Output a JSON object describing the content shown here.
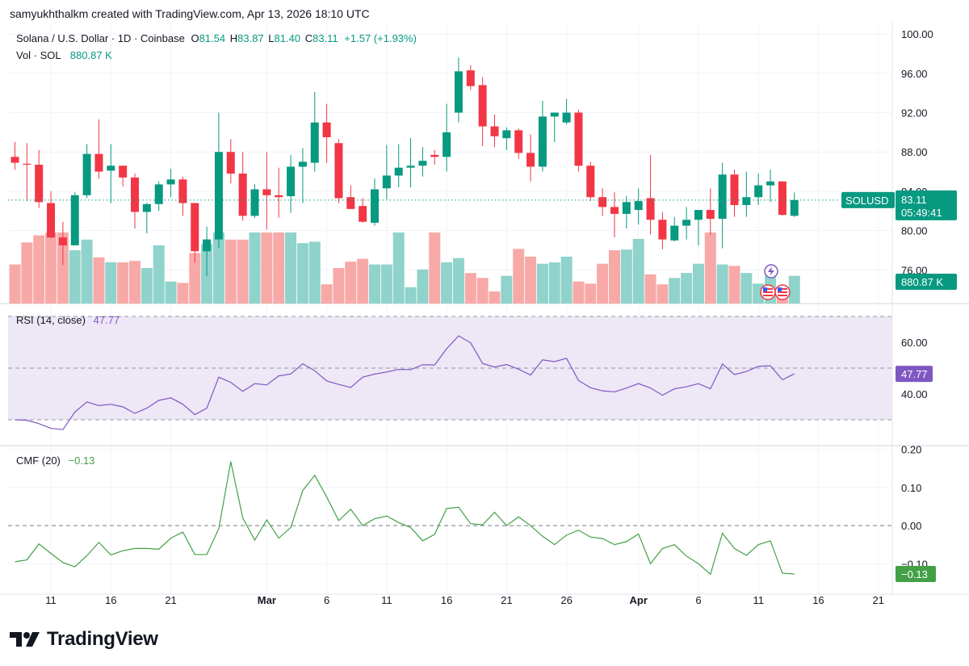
{
  "header": {
    "credit": "samyukhthalkm created with TradingView.com, Apr 13, 2026 18:10 UTC"
  },
  "legend": {
    "symbol": "Solana / U.S. Dollar · 1D · Coinbase",
    "o_label": "O",
    "o_value": "81.54",
    "h_label": "H",
    "h_value": "83.87",
    "l_label": "L",
    "l_value": "81.40",
    "c_label": "C",
    "c_value": "83.11",
    "change": "+1.57 (+1.93%)",
    "vol_label": "Vol · SOL",
    "vol_value": "880.87 K"
  },
  "price_tag": {
    "symbol": "SOLUSD",
    "price": "83.11",
    "countdown": "05:49:41"
  },
  "volume_tag": "880.87 K",
  "rsi": {
    "label": "RSI (14, close)",
    "value": "47.77"
  },
  "cmf": {
    "label": "CMF (20)",
    "value": "−0.13",
    "tag": "−0.13"
  },
  "colors": {
    "up": "#089981",
    "down": "#f23645",
    "vol_up": "#8fd3cb",
    "vol_down": "#f7a9a8",
    "rsi_line": "#7e57c2",
    "rsi_band": "#ede7f6",
    "cmf_line": "#43a047",
    "grid": "#f0f3fa"
  },
  "footer": {
    "brand": "TradingView",
    "logo_icon": "tradingview-logo-icon"
  },
  "events_icons": [
    "lightning-event-icon",
    "us-flag-icon",
    "us-flag-icon"
  ],
  "chart_data": [
    {
      "type": "candlestick",
      "title": "Solana / U.S. Dollar · 1D · Coinbase",
      "ylim": [
        78.0,
        100.5
      ],
      "y_ticks": [
        "100.00",
        "96.00",
        "92.00",
        "88.00",
        "84.00",
        "80.00",
        "76.00"
      ],
      "x_ticks": [
        {
          "label": "11",
          "index": 3
        },
        {
          "label": "16",
          "index": 8
        },
        {
          "label": "21",
          "index": 13
        },
        {
          "label": "Mar",
          "index": 21,
          "bold": true
        },
        {
          "label": "6",
          "index": 26
        },
        {
          "label": "11",
          "index": 31
        },
        {
          "label": "16",
          "index": 36
        },
        {
          "label": "21",
          "index": 41
        },
        {
          "label": "26",
          "index": 46
        },
        {
          "label": "Apr",
          "index": 52,
          "bold": true
        },
        {
          "label": "6",
          "index": 57
        },
        {
          "label": "11",
          "index": 62
        },
        {
          "label": "16",
          "index": 67
        },
        {
          "label": "21",
          "index": 72
        }
      ],
      "ohlc": [
        [
          87.5,
          89.0,
          86.2,
          86.9
        ],
        [
          86.8,
          88.9,
          83.0,
          86.7
        ],
        [
          86.7,
          88.2,
          82.3,
          82.9
        ],
        [
          82.8,
          84.0,
          79.2,
          79.3
        ],
        [
          79.3,
          80.9,
          76.5,
          78.5
        ],
        [
          78.5,
          83.9,
          78.5,
          83.6
        ],
        [
          83.6,
          88.8,
          83.3,
          87.8
        ],
        [
          87.8,
          91.3,
          85.3,
          86.0
        ],
        [
          86.1,
          88.8,
          82.8,
          86.6
        ],
        [
          86.6,
          86.6,
          84.5,
          85.4
        ],
        [
          85.4,
          85.8,
          80.2,
          81.9
        ],
        [
          81.9,
          82.8,
          79.7,
          82.7
        ],
        [
          82.7,
          85.0,
          82.0,
          84.7
        ],
        [
          84.7,
          86.3,
          83.4,
          85.2
        ],
        [
          85.2,
          85.5,
          81.5,
          82.8
        ],
        [
          82.8,
          82.8,
          76.7,
          77.9
        ],
        [
          77.9,
          80.4,
          75.4,
          79.1
        ],
        [
          79.1,
          92.0,
          78.2,
          88.0
        ],
        [
          88.0,
          89.3,
          84.8,
          85.8
        ],
        [
          85.8,
          88.0,
          81.0,
          81.5
        ],
        [
          81.5,
          84.7,
          81.3,
          84.2
        ],
        [
          84.2,
          88.0,
          80.1,
          83.6
        ],
        [
          83.6,
          86.4,
          81.3,
          83.4
        ],
        [
          83.5,
          87.7,
          81.8,
          86.5
        ],
        [
          86.5,
          88.4,
          82.8,
          87.0
        ],
        [
          86.9,
          94.1,
          86.0,
          91.0
        ],
        [
          91.0,
          92.9,
          86.9,
          89.5
        ],
        [
          88.9,
          89.3,
          82.8,
          83.3
        ],
        [
          83.4,
          84.6,
          82.2,
          82.2
        ],
        [
          82.5,
          83.3,
          80.8,
          80.9
        ],
        [
          80.8,
          85.3,
          80.5,
          84.2
        ],
        [
          84.3,
          88.7,
          83.2,
          85.6
        ],
        [
          85.6,
          88.8,
          84.4,
          86.4
        ],
        [
          86.4,
          89.4,
          84.4,
          86.6
        ],
        [
          86.6,
          88.5,
          85.5,
          87.1
        ],
        [
          87.7,
          88.2,
          86.7,
          87.5
        ],
        [
          87.5,
          92.9,
          86.0,
          90.0
        ],
        [
          92.0,
          97.6,
          91.0,
          96.2
        ],
        [
          96.3,
          96.8,
          94.3,
          94.7
        ],
        [
          94.8,
          95.6,
          88.6,
          90.6
        ],
        [
          90.6,
          91.8,
          88.5,
          89.6
        ],
        [
          89.4,
          90.5,
          88.2,
          90.2
        ],
        [
          90.2,
          90.4,
          87.3,
          87.9
        ],
        [
          87.9,
          89.8,
          85.0,
          86.5
        ],
        [
          86.5,
          93.2,
          86.0,
          91.6
        ],
        [
          91.6,
          92.0,
          89.0,
          92.0
        ],
        [
          91.0,
          93.4,
          90.8,
          92.0
        ],
        [
          92.0,
          92.3,
          86.0,
          86.6
        ],
        [
          86.6,
          87.0,
          83.0,
          83.4
        ],
        [
          83.4,
          84.3,
          81.5,
          82.4
        ],
        [
          82.4,
          83.9,
          79.3,
          81.7
        ],
        [
          81.7,
          83.5,
          80.2,
          82.9
        ],
        [
          82.1,
          84.3,
          80.6,
          83.0
        ],
        [
          83.3,
          87.7,
          79.6,
          81.1
        ],
        [
          81.1,
          81.9,
          78.1,
          79.1
        ],
        [
          79.0,
          81.4,
          78.9,
          80.5
        ],
        [
          80.5,
          82.4,
          79.1,
          81.1
        ],
        [
          81.1,
          82.0,
          78.5,
          82.1
        ],
        [
          82.1,
          84.3,
          79.6,
          81.2
        ],
        [
          81.2,
          86.9,
          78.2,
          85.7
        ],
        [
          85.7,
          86.2,
          81.4,
          82.6
        ],
        [
          82.6,
          86.0,
          81.4,
          83.4
        ],
        [
          83.4,
          85.8,
          82.6,
          84.6
        ],
        [
          84.6,
          86.2,
          82.9,
          85.0
        ],
        [
          85.0,
          85.0,
          81.5,
          81.6
        ],
        [
          81.5,
          83.9,
          81.4,
          83.1
        ]
      ],
      "volume_levels": [
        0.55,
        0.86,
        0.96,
        1.0,
        1.0,
        0.75,
        0.9,
        0.65,
        0.58,
        0.58,
        0.6,
        0.5,
        0.82,
        0.31,
        0.29,
        0.71,
        0.84,
        1.0,
        0.9,
        0.9,
        1.0,
        1.0,
        1.0,
        1.0,
        0.85,
        0.87,
        0.27,
        0.5,
        0.59,
        0.63,
        0.55,
        0.55,
        1.0,
        0.23,
        0.48,
        1.0,
        0.58,
        0.64,
        0.43,
        0.36,
        0.17,
        0.39,
        0.77,
        0.66,
        0.56,
        0.58,
        0.66,
        0.31,
        0.28,
        0.56,
        0.75,
        0.76,
        0.91,
        0.41,
        0.27,
        0.36,
        0.43,
        0.56,
        1.0,
        0.55,
        0.53,
        0.43,
        0.28,
        0.39,
        0.13,
        0.39
      ],
      "direction": "up=close>=open"
    },
    {
      "type": "line",
      "title": "RSI (14, close)",
      "ylim": [
        20,
        75
      ],
      "y_ticks": [
        "60.00",
        "40.00"
      ],
      "band": [
        30,
        70
      ],
      "mid": 50,
      "values": [
        30.0,
        29.8,
        28.5,
        26.7,
        26.2,
        33.0,
        36.9,
        35.5,
        36.0,
        35.0,
        32.5,
        34.5,
        37.5,
        38.5,
        36.0,
        32.0,
        34.5,
        46.5,
        44.5,
        41.0,
        44.0,
        43.5,
        47.0,
        47.7,
        51.7,
        49.0,
        45.0,
        43.7,
        42.5,
        46.5,
        47.7,
        48.5,
        49.5,
        49.4,
        51.3,
        51.2,
        57.5,
        62.5,
        59.8,
        51.8,
        50.4,
        51.4,
        49.6,
        47.3,
        53.2,
        52.5,
        53.8,
        45.2,
        42.4,
        41.2,
        40.8,
        42.3,
        44.0,
        42.3,
        39.5,
        42.0,
        42.8,
        44.0,
        42.0,
        51.6,
        47.5,
        48.7,
        50.7,
        50.9,
        45.5,
        47.8
      ]
    },
    {
      "type": "line",
      "title": "CMF (20)",
      "ylim": [
        -0.18,
        0.21
      ],
      "y_ticks": [
        "0.20",
        "0.10",
        "0.00",
        "−0.10"
      ],
      "values": [
        -0.095,
        -0.09,
        -0.048,
        -0.073,
        -0.097,
        -0.108,
        -0.079,
        -0.044,
        -0.077,
        -0.066,
        -0.06,
        -0.06,
        -0.062,
        -0.033,
        -0.017,
        -0.076,
        -0.076,
        -0.008,
        0.168,
        0.02,
        -0.038,
        0.015,
        -0.033,
        -0.005,
        0.092,
        0.132,
        0.075,
        0.013,
        0.043,
        0.0,
        0.018,
        0.025,
        0.008,
        -0.005,
        -0.04,
        -0.023,
        0.045,
        0.048,
        0.005,
        0.002,
        0.035,
        0.0,
        0.023,
        0.0,
        -0.028,
        -0.05,
        -0.025,
        -0.012,
        -0.03,
        -0.034,
        -0.05,
        -0.042,
        -0.022,
        -0.1,
        -0.06,
        -0.05,
        -0.08,
        -0.1,
        -0.128,
        -0.02,
        -0.06,
        -0.078,
        -0.05,
        -0.04,
        -0.125,
        -0.127
      ]
    }
  ]
}
